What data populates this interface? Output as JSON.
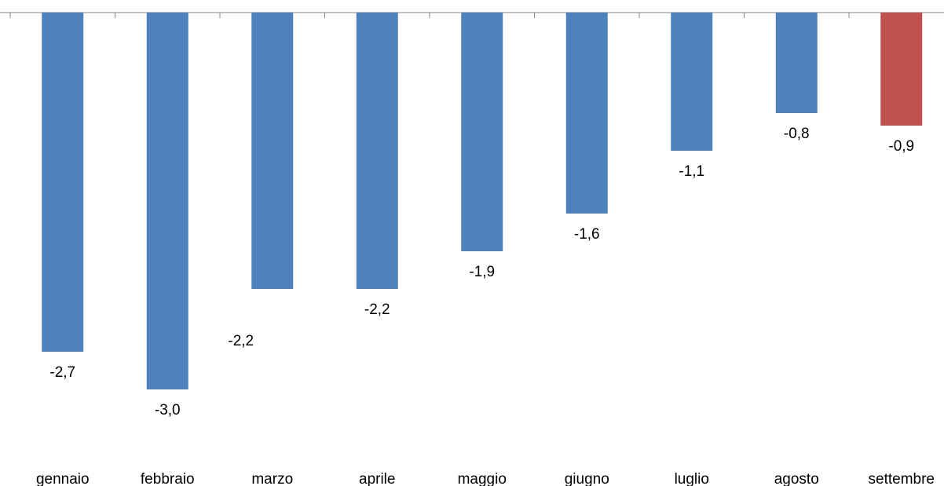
{
  "chart_data": {
    "type": "bar",
    "categories": [
      "gennaio",
      "febbraio",
      "marzo",
      "aprile",
      "maggio",
      "giugno",
      "luglio",
      "agosto",
      "settembre"
    ],
    "values": [
      -2.7,
      -3.0,
      -2.2,
      -2.2,
      -1.9,
      -1.6,
      -1.1,
      -0.8,
      -0.9
    ],
    "data_labels": [
      "-2,7",
      "-3,0",
      "-2,2",
      "-2,2",
      "-1,9",
      "-1,6",
      "-1,1",
      "-0,8",
      "-0,9"
    ],
    "bar_colors": [
      "#4f81bd",
      "#4f81bd",
      "#4f81bd",
      "#4f81bd",
      "#4f81bd",
      "#4f81bd",
      "#4f81bd",
      "#4f81bd",
      "#c0504d"
    ],
    "ylim": [
      -3.0,
      0
    ],
    "grid": false,
    "legend": "none",
    "title": "",
    "xlabel": "",
    "ylabel": ""
  }
}
